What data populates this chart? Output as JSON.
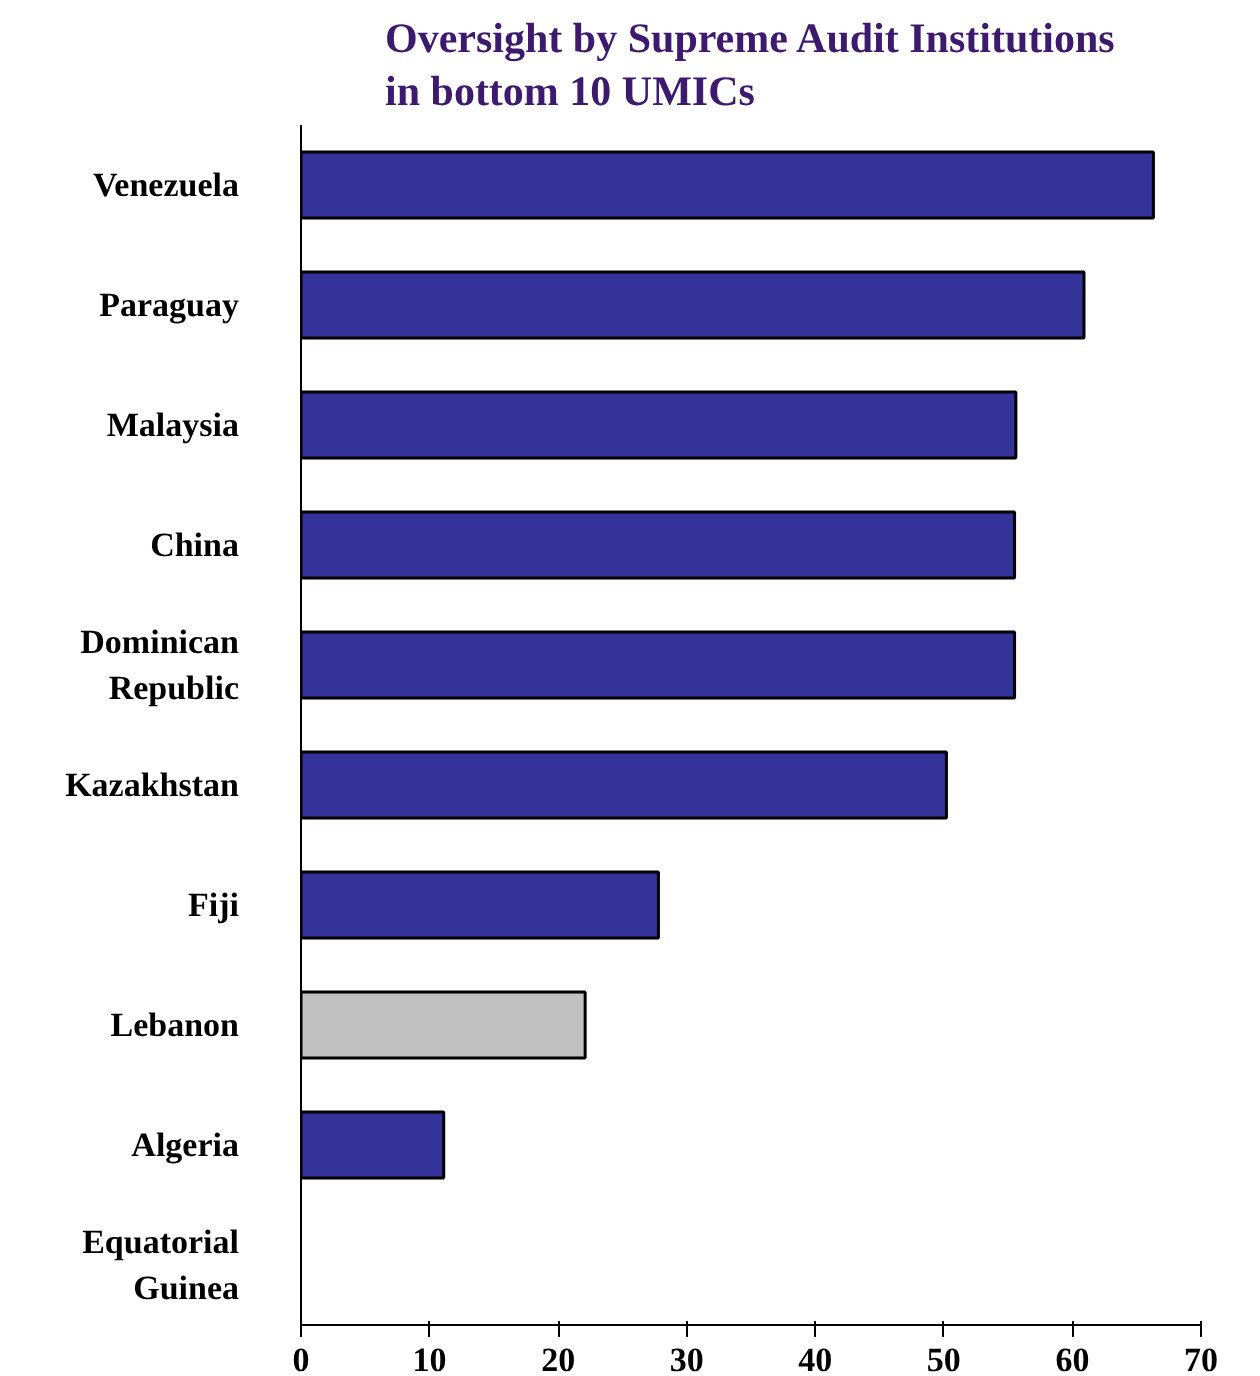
{
  "chart_data": {
    "type": "bar",
    "orientation": "horizontal",
    "title": "Oversight by Supreme Audit Institutions\nin bottom 10 UMICs",
    "categories": [
      "Venezuela",
      "Paraguay",
      "Malaysia",
      "China",
      "Dominican Republic",
      "Kazakhstan",
      "Fiji",
      "Lebanon",
      "Algeria",
      "Equatorial Guinea"
    ],
    "values": [
      66.3,
      60.9,
      55.6,
      55.5,
      55.5,
      50.2,
      27.8,
      22.1,
      11.1,
      0
    ],
    "colors": [
      "#333399",
      "#333399",
      "#333399",
      "#333399",
      "#333399",
      "#333399",
      "#333399",
      "#c0c0c0",
      "#333399",
      "#333399"
    ],
    "xlim": [
      0,
      70
    ],
    "xticks": [
      0,
      10,
      20,
      30,
      40,
      50,
      60,
      70
    ],
    "grid": false
  }
}
